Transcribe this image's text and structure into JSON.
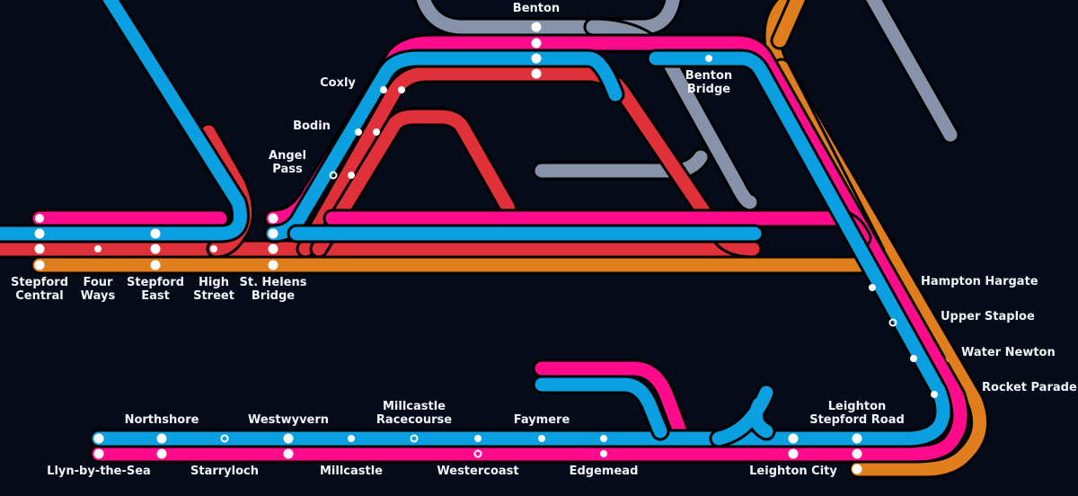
{
  "colors": {
    "background": "#050b18",
    "blue": "#0a9fe0",
    "pink": "#ff0b8c",
    "red": "#e0303a",
    "orange": "#e07d1c",
    "grey": "#8592aa"
  },
  "stations": {
    "stepford_central": "Stepford\nCentral",
    "four_ways": "Four\nWays",
    "stepford_east": "Stepford\nEast",
    "high_street": "High\nStreet",
    "st_helens_bridge": "St. Helens\nBridge",
    "angel_pass": "Angel\nPass",
    "bodin": "Bodin",
    "coxly": "Coxly",
    "benton": "Benton",
    "benton_bridge": "Benton\nBridge",
    "hampton_hargate": "Hampton Hargate",
    "upper_staploe": "Upper Staploe",
    "water_newton": "Water Newton",
    "rocket_parade": "Rocket Parade",
    "leighton_stepford_road": "Leighton\nStepford Road",
    "leighton_city": "Leighton City",
    "northshore": "Northshore",
    "westwyvern": "Westwyvern",
    "millcastle_racecourse": "Millcastle\nRacecourse",
    "faymere": "Faymere",
    "llyn_by_the_sea": "Llyn-by-the-Sea",
    "starryloch": "Starryloch",
    "millcastle": "Millcastle",
    "westercoast": "Westercoast",
    "edgemead": "Edgemead"
  }
}
